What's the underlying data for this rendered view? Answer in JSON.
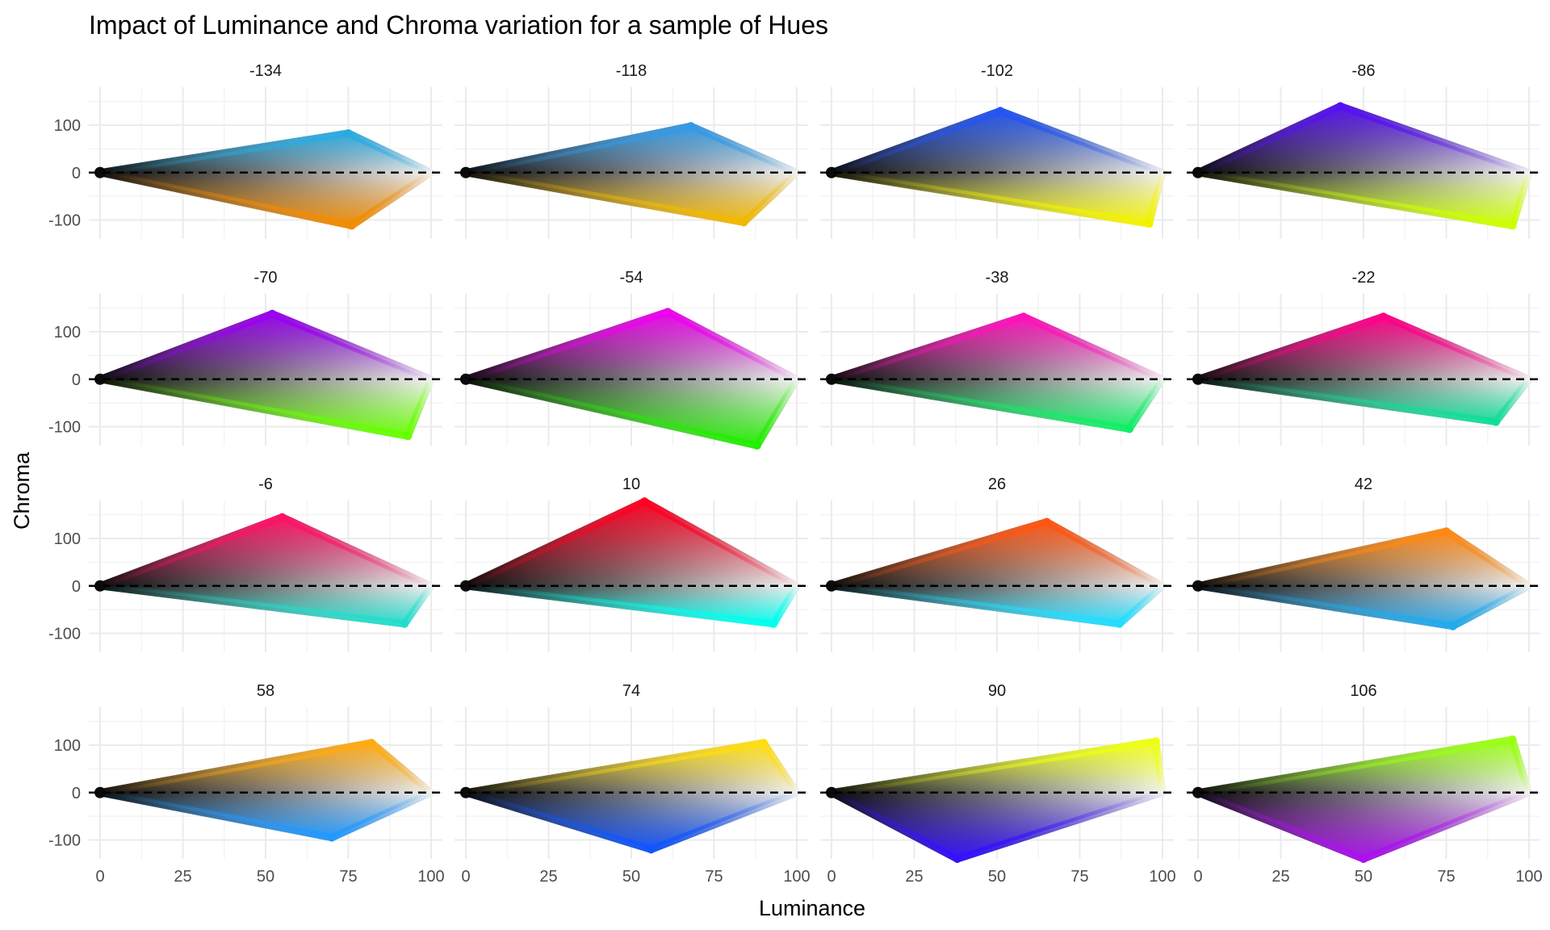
{
  "chart_data": {
    "type": "scatter",
    "title": "Impact of Luminance and Chroma variation for a sample of Hues",
    "xlabel": "Luminance",
    "ylabel": "Chroma",
    "xlim": [
      0,
      100
    ],
    "ylim": [
      -140,
      180
    ],
    "x_ticks": [
      "0",
      "25",
      "50",
      "75",
      "100"
    ],
    "y_ticks": [
      "100",
      "0",
      "-100"
    ],
    "grid": true,
    "reference_line": {
      "y": 0,
      "style": "dashed",
      "color": "#000000"
    },
    "facets": [
      {
        "hue": "-134",
        "peak_pos": [
          75,
          83
        ],
        "peak_neg": [
          76,
          -112
        ],
        "pos_color": "#29abe2",
        "neg_color": "#f28c00"
      },
      {
        "hue": "-118",
        "peak_pos": [
          68,
          98
        ],
        "peak_neg": [
          84,
          -105
        ],
        "pos_color": "#3399e6",
        "neg_color": "#f2b800"
      },
      {
        "hue": "-102",
        "peak_pos": [
          51,
          130
        ],
        "peak_neg": [
          96,
          -108
        ],
        "pos_color": "#2255f2",
        "neg_color": "#f2f200"
      },
      {
        "hue": "-86",
        "peak_pos": [
          43,
          140
        ],
        "peak_neg": [
          95,
          -112
        ],
        "pos_color": "#5511f2",
        "neg_color": "#ccff00"
      },
      {
        "hue": "-70",
        "peak_pos": [
          52,
          138
        ],
        "peak_neg": [
          93,
          -120
        ],
        "pos_color": "#9900f0",
        "neg_color": "#66ff00"
      },
      {
        "hue": "-54",
        "peak_pos": [
          61,
          142
        ],
        "peak_neg": [
          88,
          -140
        ],
        "pos_color": "#ee00ee",
        "neg_color": "#22ee00"
      },
      {
        "hue": "-38",
        "peak_pos": [
          58,
          132
        ],
        "peak_neg": [
          90,
          -105
        ],
        "pos_color": "#ff11bb",
        "neg_color": "#11ee66"
      },
      {
        "hue": "-22",
        "peak_pos": [
          56,
          132
        ],
        "peak_neg": [
          90,
          -90
        ],
        "pos_color": "#ff0088",
        "neg_color": "#11dd99"
      },
      {
        "hue": "-6",
        "peak_pos": [
          55,
          145
        ],
        "peak_neg": [
          92,
          -80
        ],
        "pos_color": "#ff1166",
        "neg_color": "#22ddcc"
      },
      {
        "hue": "10",
        "peak_pos": [
          54,
          178
        ],
        "peak_neg": [
          93,
          -80
        ],
        "pos_color": "#ff0022",
        "neg_color": "#00ffee"
      },
      {
        "hue": "26",
        "peak_pos": [
          65,
          135
        ],
        "peak_neg": [
          87,
          -80
        ],
        "pos_color": "#ff5511",
        "neg_color": "#22ddff"
      },
      {
        "hue": "42",
        "peak_pos": [
          75,
          115
        ],
        "peak_neg": [
          77,
          -85
        ],
        "pos_color": "#ff8811",
        "neg_color": "#22aaee"
      },
      {
        "hue": "58",
        "peak_pos": [
          82,
          105
        ],
        "peak_neg": [
          70,
          -95
        ],
        "pos_color": "#ffaa11",
        "neg_color": "#2299ff"
      },
      {
        "hue": "74",
        "peak_pos": [
          90,
          105
        ],
        "peak_neg": [
          56,
          -120
        ],
        "pos_color": "#ffdd11",
        "neg_color": "#1155ff"
      },
      {
        "hue": "90",
        "peak_pos": [
          98,
          108
        ],
        "peak_neg": [
          38,
          -140
        ],
        "pos_color": "#eeff11",
        "neg_color": "#3311ff"
      },
      {
        "hue": "106",
        "peak_pos": [
          95,
          112
        ],
        "peak_neg": [
          50,
          -140
        ],
        "pos_color": "#99ff11",
        "neg_color": "#aa11ee"
      }
    ]
  }
}
